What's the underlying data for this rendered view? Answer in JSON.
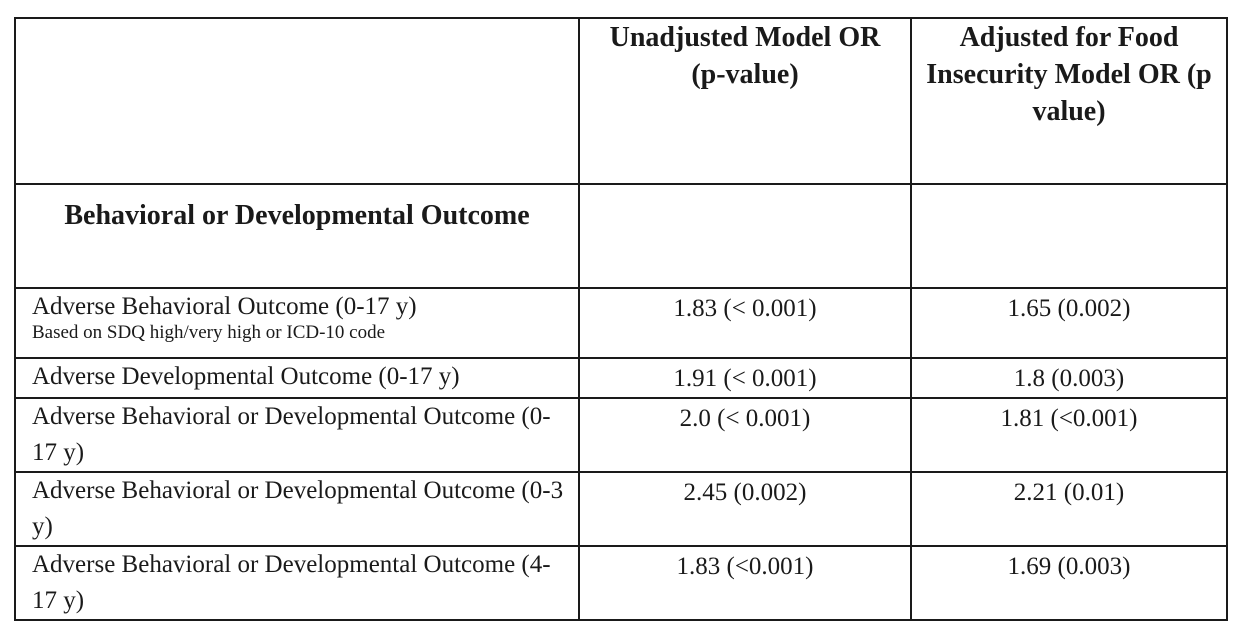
{
  "table": {
    "header": {
      "col1": "",
      "col2": "Unadjusted Model OR (p-value)",
      "col3": "Adjusted for Food Insecurity Model OR (p value)"
    },
    "section_title": "Behavioral or Developmental Outcome",
    "rows": [
      {
        "label": "Adverse Behavioral Outcome (0-17 y)",
        "note": "Based on SDQ high/very high or ICD-10 code",
        "unadjusted": "1.83 (< 0.001)",
        "adjusted": "1.65 (0.002)"
      },
      {
        "label": "Adverse Developmental Outcome (0-17 y)",
        "unadjusted": "1.91 (< 0.001)",
        "adjusted": "1.8 (0.003)"
      },
      {
        "label": "Adverse Behavioral or Developmental Outcome (0-17 y)",
        "unadjusted": "2.0 (< 0.001)",
        "adjusted": "1.81 (<0.001)"
      },
      {
        "label": "Adverse Behavioral or Developmental Outcome (0-3 y)",
        "unadjusted": "2.45 (0.002)",
        "adjusted": "2.21 (0.01)"
      },
      {
        "label": "Adverse Behavioral or Developmental Outcome (4-17 y)",
        "unadjusted": "1.83 (<0.001)",
        "adjusted": "1.69 (0.003)"
      }
    ]
  }
}
